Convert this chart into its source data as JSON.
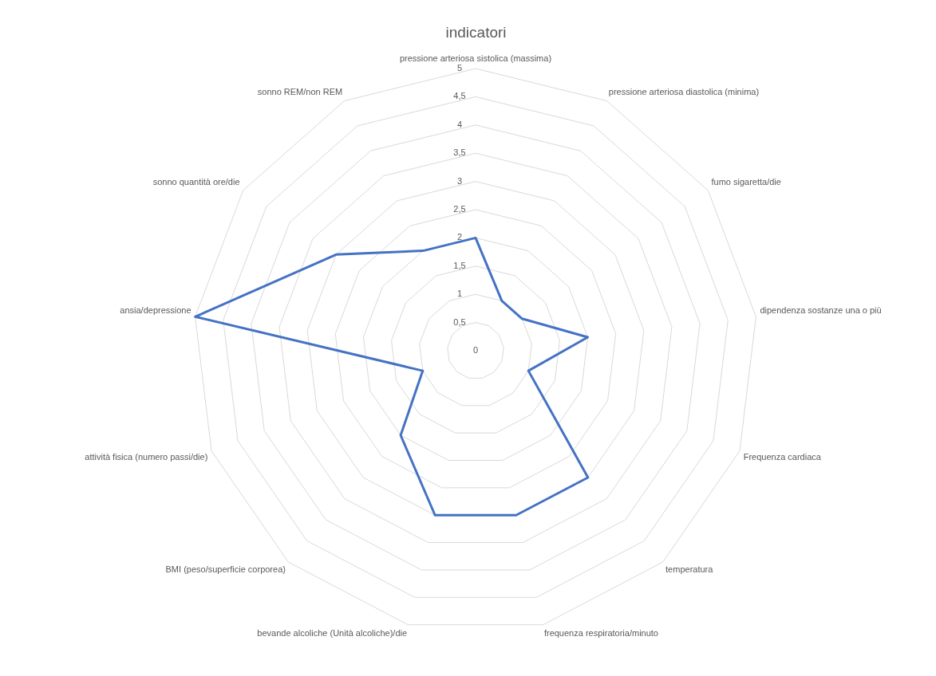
{
  "chart_data": {
    "type": "radar",
    "title": "indicatori",
    "categories": [
      "pressione arteriosa sistolica (massima)",
      "pressione arteriosa diastolica (minima)",
      "fumo sigaretta/die",
      "dipendenza sostanze una o più",
      "Frequenza cardiaca",
      "temperatura",
      "frequenza respiratoria/minuto",
      "bevande alcoliche (Unità alcoliche)/die",
      "BMI (peso/superficie corporea)",
      "attività fisica (numero passi/die)",
      "ansia/depressione",
      "sonno quantità ore/die",
      "sonno REM/non REM"
    ],
    "series": [
      {
        "color": "#4472c4",
        "values": [
          2,
          1,
          1,
          2,
          1,
          3,
          3,
          3,
          2,
          1,
          5,
          3,
          2
        ]
      }
    ],
    "ylim": [
      0,
      5
    ],
    "yticks": [
      0,
      {
        "value": 0.5,
        "label": "0,5"
      },
      1,
      {
        "value": 1.5,
        "label": "1,5"
      },
      2,
      {
        "value": 2.5,
        "label": "2,5"
      },
      3,
      {
        "value": 3.5,
        "label": "3,5"
      },
      4,
      {
        "value": 4.5,
        "label": "4,5"
      },
      5
    ],
    "grid": true,
    "legend": false,
    "marker": "none",
    "line_style": "solid"
  }
}
